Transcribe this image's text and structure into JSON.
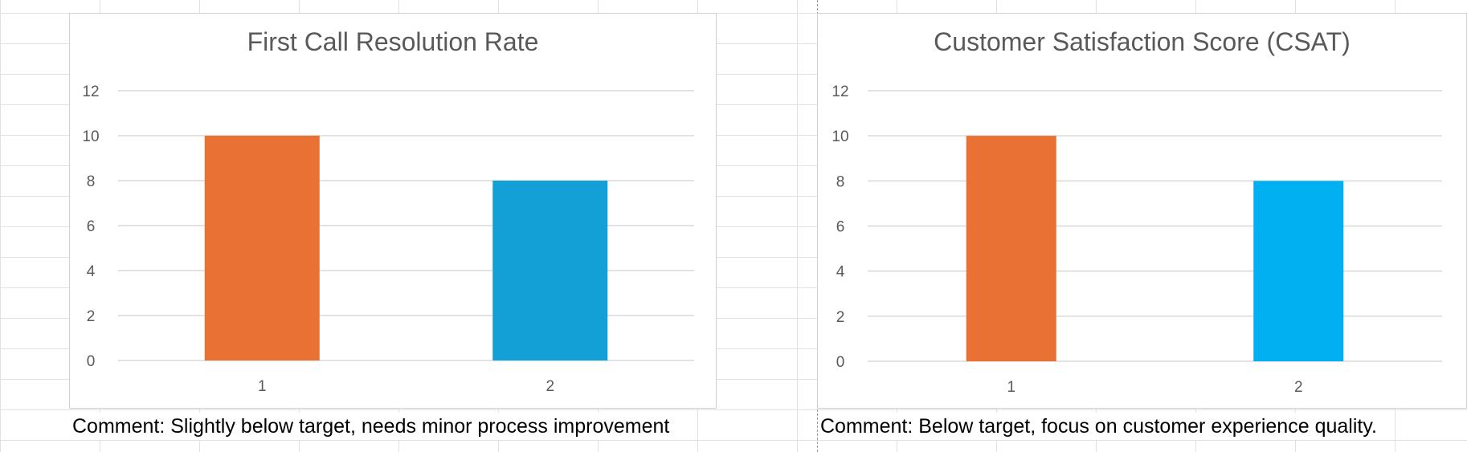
{
  "colors": {
    "bar_orange": "#ea7134",
    "bar_blue_1": "#12a0d7",
    "bar_blue_2": "#00b0f0",
    "gridline": "#d9d9d9",
    "text_gray": "#595959"
  },
  "chart_data": [
    {
      "type": "bar",
      "title": "First Call Resolution Rate",
      "categories": [
        "1",
        "2"
      ],
      "values": [
        10,
        8
      ],
      "bar_colors": [
        "#ea7134",
        "#12a0d7"
      ],
      "yticks": [
        "0",
        "2",
        "4",
        "6",
        "8",
        "10",
        "12"
      ],
      "ylim": [
        0,
        12
      ],
      "grid": true,
      "legend": "none"
    },
    {
      "type": "bar",
      "title": "Customer Satisfaction Score (CSAT)",
      "categories": [
        "1",
        "2"
      ],
      "values": [
        10,
        8
      ],
      "bar_colors": [
        "#ea7134",
        "#00b0f0"
      ],
      "yticks": [
        "0",
        "2",
        "4",
        "6",
        "8",
        "10",
        "12"
      ],
      "ylim": [
        0,
        12
      ],
      "grid": true,
      "legend": "none"
    }
  ],
  "comments": [
    "Comment: Slightly below target, needs minor process improvement",
    "Comment: Below target, focus on customer experience quality."
  ]
}
